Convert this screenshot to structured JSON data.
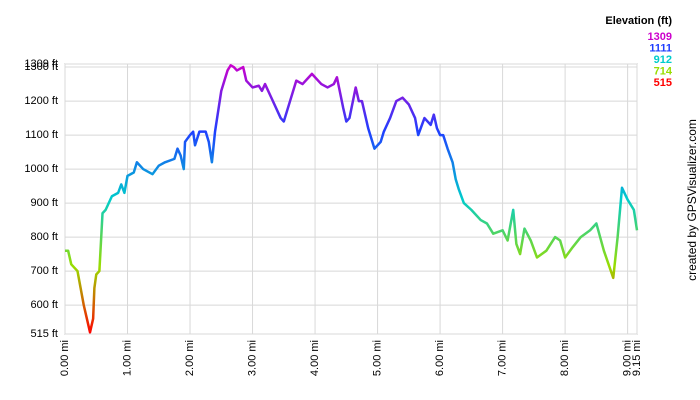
{
  "chart_data": {
    "type": "line",
    "legend_title": "Elevation (ft)",
    "color_scale": [
      {
        "value": 1309,
        "color": "#cc00cc"
      },
      {
        "value": 1111,
        "color": "#1f3fff"
      },
      {
        "value": 912,
        "color": "#00cccc"
      },
      {
        "value": 714,
        "color": "#99dd00"
      },
      {
        "value": 515,
        "color": "#ff0000"
      }
    ],
    "credit": "created by GPSVisualizer.com",
    "grid": true,
    "xlim": [
      0,
      9.15
    ],
    "ylim": [
      515,
      1309
    ],
    "xticks": [
      {
        "value": 0,
        "label": "0.00 mi"
      },
      {
        "value": 1,
        "label": "1.00 mi"
      },
      {
        "value": 2,
        "label": "2.00 mi"
      },
      {
        "value": 3,
        "label": "3.00 mi"
      },
      {
        "value": 4,
        "label": "4.00 mi"
      },
      {
        "value": 5,
        "label": "5.00 mi"
      },
      {
        "value": 6,
        "label": "6.00 mi"
      },
      {
        "value": 7,
        "label": "7.00 mi"
      },
      {
        "value": 8,
        "label": "8.00 mi"
      },
      {
        "value": 9,
        "label": "9.00 mi"
      },
      {
        "value": 9.15,
        "label": "9.15 mi"
      }
    ],
    "yticks": [
      {
        "value": 515,
        "label": "515 ft"
      },
      {
        "value": 600,
        "label": "600 ft"
      },
      {
        "value": 700,
        "label": "700 ft"
      },
      {
        "value": 800,
        "label": "800 ft"
      },
      {
        "value": 900,
        "label": "900 ft"
      },
      {
        "value": 1000,
        "label": "1000 ft"
      },
      {
        "value": 1100,
        "label": "1100 ft"
      },
      {
        "value": 1200,
        "label": "1200 ft"
      },
      {
        "value": 1300,
        "label": "1300 ft"
      },
      {
        "value": 1309,
        "label": "1309 ft"
      }
    ],
    "x": [
      0,
      0.05,
      0.1,
      0.2,
      0.25,
      0.3,
      0.35,
      0.4,
      0.45,
      0.47,
      0.5,
      0.55,
      0.6,
      0.65,
      0.75,
      0.85,
      0.9,
      0.95,
      1.0,
      1.1,
      1.15,
      1.25,
      1.4,
      1.5,
      1.6,
      1.75,
      1.8,
      1.85,
      1.9,
      1.92,
      2.0,
      2.05,
      2.08,
      2.15,
      2.25,
      2.3,
      2.35,
      2.4,
      2.5,
      2.55,
      2.6,
      2.65,
      2.7,
      2.75,
      2.85,
      2.9,
      3.0,
      3.1,
      3.15,
      3.2,
      3.3,
      3.45,
      3.5,
      3.6,
      3.7,
      3.8,
      3.9,
      3.95,
      4.05,
      4.1,
      4.2,
      4.3,
      4.35,
      4.45,
      4.5,
      4.55,
      4.65,
      4.7,
      4.75,
      4.85,
      4.95,
      5.05,
      5.1,
      5.2,
      5.3,
      5.4,
      5.5,
      5.6,
      5.65,
      5.75,
      5.85,
      5.9,
      5.95,
      6.0,
      6.05,
      6.12,
      6.2,
      6.25,
      6.3,
      6.38,
      6.5,
      6.65,
      6.75,
      6.85,
      7.0,
      7.08,
      7.17,
      7.22,
      7.28,
      7.35,
      7.45,
      7.55,
      7.7,
      7.84,
      7.92,
      8.0,
      8.12,
      8.25,
      8.4,
      8.5,
      8.62,
      8.77,
      8.84,
      8.91,
      9.0,
      9.1,
      9.15
    ],
    "series": [
      {
        "values": [
          760,
          760,
          720,
          700,
          650,
          600,
          560,
          520,
          560,
          650,
          690,
          700,
          870,
          880,
          920,
          930,
          955,
          930,
          980,
          990,
          1020,
          1000,
          985,
          1010,
          1020,
          1030,
          1060,
          1040,
          1000,
          1080,
          1100,
          1110,
          1070,
          1110,
          1110,
          1080,
          1020,
          1110,
          1230,
          1260,
          1290,
          1305,
          1300,
          1290,
          1300,
          1260,
          1240,
          1245,
          1230,
          1250,
          1210,
          1150,
          1140,
          1200,
          1260,
          1250,
          1270,
          1280,
          1260,
          1250,
          1240,
          1250,
          1270,
          1180,
          1140,
          1150,
          1240,
          1200,
          1200,
          1120,
          1060,
          1080,
          1110,
          1150,
          1200,
          1210,
          1190,
          1150,
          1100,
          1150,
          1130,
          1160,
          1120,
          1100,
          1100,
          1060,
          1020,
          970,
          940,
          900,
          880,
          850,
          840,
          810,
          820,
          790,
          880,
          780,
          750,
          825,
          790,
          740,
          760,
          800,
          790,
          740,
          770,
          800,
          820,
          840,
          760,
          680,
          800,
          945,
          910,
          880,
          820
        ]
      }
    ]
  }
}
